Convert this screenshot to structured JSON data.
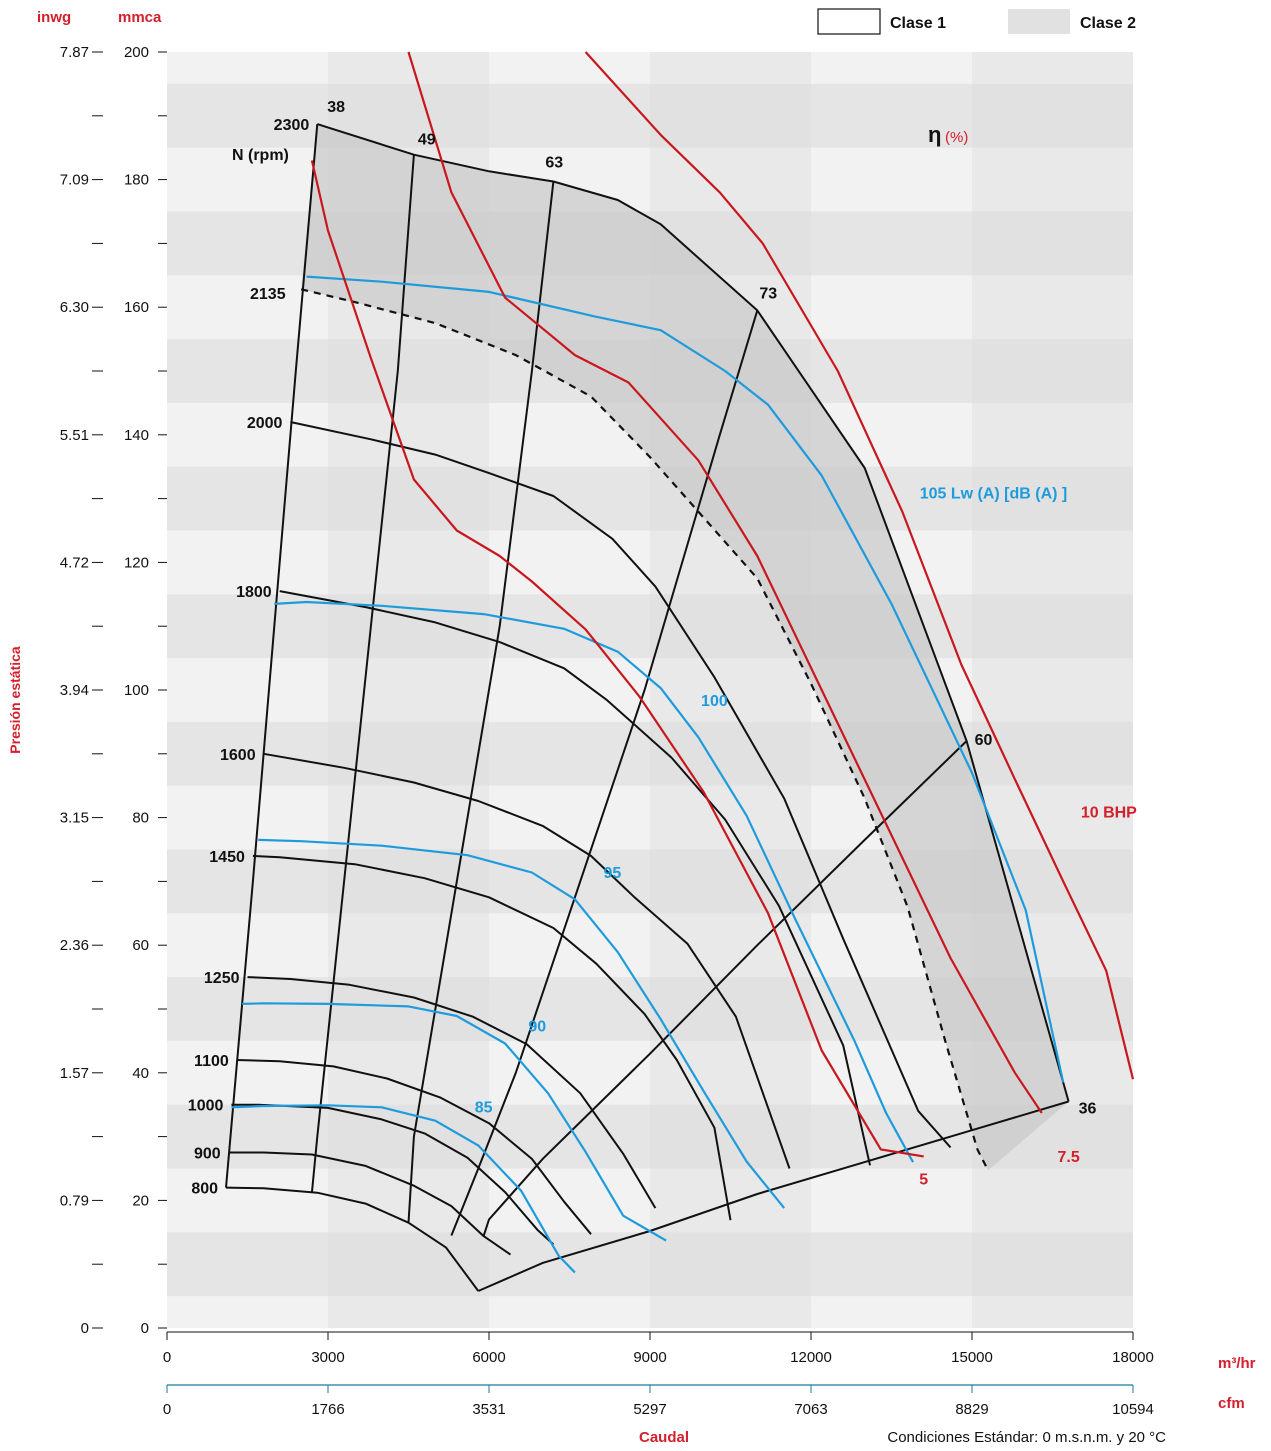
{
  "chart_data": {
    "type": "line",
    "axes": {
      "x": {
        "unit": "m³/hr",
        "min": 0,
        "max": 18000,
        "ticks": [
          0,
          3000,
          6000,
          9000,
          12000,
          15000,
          18000
        ],
        "secondary_unit": "cfm",
        "secondary_ticks": [
          "0",
          "1766",
          "3531",
          "5297",
          "7063",
          "8829",
          "10594"
        ],
        "xlabel": "Caudal"
      },
      "y": {
        "unit": "mmca",
        "min": 0,
        "max": 200,
        "ticks": [
          0,
          20,
          40,
          60,
          80,
          100,
          120,
          140,
          160,
          180,
          200
        ],
        "secondary_unit": "inwg",
        "secondary_ticks": [
          "0",
          "0.79",
          "1.57",
          "2.36",
          "3.15",
          "3.94",
          "4.72",
          "5.51",
          "6.30",
          "7.09",
          "7.87"
        ],
        "ylabel": "Presión estática"
      }
    },
    "legend": [
      {
        "name": "Clase 1",
        "fill": "#ffffff"
      },
      {
        "name": "Clase 2",
        "fill": "#e1e1e1"
      }
    ],
    "note": "Condiciones Estándar: 0 m.s.n.m. y 20 °C",
    "rpm_curves": [
      {
        "label": "2300",
        "points": [
          [
            2800,
            188.7
          ],
          [
            4600,
            183.9
          ],
          [
            6000,
            181.3
          ],
          [
            7200,
            179.7
          ],
          [
            8400,
            176.8
          ],
          [
            9200,
            173.0
          ],
          [
            11000,
            159.5
          ],
          [
            13000,
            134.8
          ],
          [
            14900,
            92.0
          ],
          [
            16800,
            35.5
          ]
        ]
      },
      {
        "label": "2000",
        "points": [
          [
            2300,
            142.0
          ],
          [
            3800,
            139.3
          ],
          [
            5000,
            136.9
          ],
          [
            6000,
            134.0
          ],
          [
            7200,
            130.4
          ],
          [
            8300,
            123.7
          ],
          [
            9100,
            116.2
          ],
          [
            10200,
            102.0
          ],
          [
            11500,
            83.0
          ],
          [
            12600,
            61.0
          ],
          [
            14000,
            34.0
          ],
          [
            14600,
            28.3
          ]
        ]
      },
      {
        "label": "1800",
        "points": [
          [
            2100,
            115.5
          ],
          [
            3700,
            113.0
          ],
          [
            5000,
            110.6
          ],
          [
            6200,
            107.5
          ],
          [
            7400,
            103.4
          ],
          [
            8200,
            98.4
          ],
          [
            9400,
            89.4
          ],
          [
            10400,
            79.7
          ],
          [
            11400,
            66.2
          ],
          [
            12600,
            44.3
          ],
          [
            13100,
            25.5
          ]
        ]
      },
      {
        "label": "1600",
        "points": [
          [
            1800,
            90.0
          ],
          [
            3300,
            87.8
          ],
          [
            4600,
            85.5
          ],
          [
            5800,
            82.6
          ],
          [
            7000,
            78.7
          ],
          [
            7900,
            74.0
          ],
          [
            8700,
            67.6
          ],
          [
            9700,
            60.2
          ],
          [
            10600,
            48.8
          ],
          [
            11600,
            25.0
          ]
        ]
      },
      {
        "label": "1450",
        "points": [
          [
            1600,
            74.0
          ],
          [
            2100,
            73.8
          ],
          [
            3500,
            72.7
          ],
          [
            4800,
            70.5
          ],
          [
            6000,
            67.5
          ],
          [
            7200,
            62.7
          ],
          [
            8000,
            57.1
          ],
          [
            8900,
            49.2
          ],
          [
            9500,
            42.0
          ],
          [
            10200,
            31.4
          ],
          [
            10500,
            16.9
          ]
        ]
      },
      {
        "label": "1250",
        "points": [
          [
            1500,
            55.0
          ],
          [
            2300,
            54.7
          ],
          [
            3400,
            53.8
          ],
          [
            4600,
            51.8
          ],
          [
            5700,
            48.8
          ],
          [
            6700,
            44.5
          ],
          [
            7700,
            36.8
          ],
          [
            8500,
            27.3
          ],
          [
            9100,
            18.8
          ]
        ]
      },
      {
        "label": "1100",
        "points": [
          [
            1300,
            42.0
          ],
          [
            2100,
            41.8
          ],
          [
            3100,
            41.0
          ],
          [
            4100,
            39.1
          ],
          [
            5100,
            36.1
          ],
          [
            6000,
            32.1
          ],
          [
            6800,
            26.5
          ],
          [
            7400,
            19.8
          ],
          [
            7900,
            14.7
          ]
        ]
      },
      {
        "label": "1000",
        "points": [
          [
            1200,
            35.0
          ],
          [
            1700,
            35.0
          ],
          [
            3000,
            34.5
          ],
          [
            4000,
            32.7
          ],
          [
            4800,
            30.5
          ],
          [
            5600,
            26.7
          ],
          [
            6300,
            21.3
          ],
          [
            6900,
            15.4
          ],
          [
            7200,
            13.1
          ]
        ]
      },
      {
        "label": "900",
        "points": [
          [
            1150,
            27.5
          ],
          [
            1800,
            27.5
          ],
          [
            2700,
            27.2
          ],
          [
            3700,
            25.4
          ],
          [
            4600,
            22.3
          ],
          [
            5300,
            19.1
          ],
          [
            5900,
            14.4
          ],
          [
            6400,
            11.5
          ]
        ]
      },
      {
        "label": "800",
        "points": [
          [
            1100,
            22.0
          ],
          [
            1800,
            21.9
          ],
          [
            2800,
            21.2
          ],
          [
            3700,
            19.5
          ],
          [
            4500,
            16.5
          ],
          [
            5200,
            12.6
          ],
          [
            5800,
            5.8
          ]
        ]
      }
    ],
    "efficiency_lines": [
      {
        "label": "38",
        "points": [
          [
            2800,
            188.7
          ],
          [
            2400,
            150.0
          ],
          [
            2000,
            110.0
          ],
          [
            1600,
            70.0
          ],
          [
            1100,
            22.0
          ]
        ]
      },
      {
        "label": "49",
        "points": [
          [
            4600,
            183.9
          ],
          [
            4300,
            150.0
          ],
          [
            3800,
            110.0
          ],
          [
            3300,
            70.0
          ],
          [
            2800,
            30.0
          ],
          [
            2700,
            21.2
          ]
        ]
      },
      {
        "label": "63",
        "points": [
          [
            7200,
            179.7
          ],
          [
            6800,
            150.0
          ],
          [
            6200,
            110.0
          ],
          [
            5400,
            70.0
          ],
          [
            4600,
            30.0
          ],
          [
            4500,
            16.5
          ]
        ]
      },
      {
        "label": "73",
        "points": [
          [
            11000,
            159.5
          ],
          [
            10300,
            140.0
          ],
          [
            9600,
            120.0
          ],
          [
            8900,
            100.0
          ],
          [
            8100,
            80.0
          ],
          [
            7300,
            60.0
          ],
          [
            6500,
            40.0
          ],
          [
            5800,
            25.0
          ],
          [
            5300,
            14.5
          ]
        ]
      },
      {
        "label": "60",
        "points": [
          [
            14900,
            92.0
          ],
          [
            13000,
            76.5
          ],
          [
            11000,
            60.0
          ],
          [
            9000,
            43.0
          ],
          [
            7000,
            26.5
          ],
          [
            6000,
            17.0
          ],
          [
            5900,
            14.4
          ]
        ]
      },
      {
        "label": "36",
        "points": [
          [
            16800,
            35.5
          ],
          [
            15000,
            31.0
          ],
          [
            13000,
            26.0
          ],
          [
            11000,
            21.0
          ],
          [
            9000,
            15.2
          ],
          [
            7000,
            10.2
          ],
          [
            5800,
            5.8
          ]
        ]
      }
    ],
    "noise_curves": [
      {
        "label": "105 Lw  (A) [dB (A) ]",
        "points": [
          [
            2600,
            164.8
          ],
          [
            4000,
            164.0
          ],
          [
            6000,
            162.4
          ],
          [
            8000,
            158.5
          ],
          [
            9200,
            156.4
          ],
          [
            10400,
            150.0
          ],
          [
            11200,
            144.7
          ],
          [
            12200,
            133.6
          ],
          [
            13500,
            113.5
          ],
          [
            15000,
            87.0
          ],
          [
            16000,
            65.5
          ],
          [
            16700,
            38.5
          ]
        ]
      },
      {
        "label": "100",
        "points": [
          [
            2000,
            113.5
          ],
          [
            2600,
            113.8
          ],
          [
            4000,
            113.2
          ],
          [
            5900,
            111.9
          ],
          [
            7400,
            109.6
          ],
          [
            8400,
            106.0
          ],
          [
            9200,
            100.3
          ],
          [
            9900,
            92.6
          ],
          [
            10800,
            80.3
          ],
          [
            11700,
            64.2
          ],
          [
            12800,
            45.2
          ],
          [
            13400,
            33.7
          ],
          [
            13900,
            26.0
          ]
        ]
      },
      {
        "label": "95",
        "points": [
          [
            1700,
            76.5
          ],
          [
            2500,
            76.3
          ],
          [
            4000,
            75.6
          ],
          [
            5600,
            74.1
          ],
          [
            6800,
            71.4
          ],
          [
            7600,
            67.2
          ],
          [
            8400,
            58.9
          ],
          [
            9200,
            48.4
          ],
          [
            10000,
            37.1
          ],
          [
            10800,
            26.1
          ],
          [
            11500,
            18.8
          ]
        ]
      },
      {
        "label": "90",
        "points": [
          [
            1400,
            50.8
          ],
          [
            1800,
            50.9
          ],
          [
            3000,
            50.8
          ],
          [
            4500,
            50.4
          ],
          [
            5400,
            48.9
          ],
          [
            6300,
            44.6
          ],
          [
            7100,
            36.8
          ],
          [
            7800,
            27.6
          ],
          [
            8500,
            17.6
          ],
          [
            9300,
            13.7
          ]
        ]
      },
      {
        "label": "85",
        "points": [
          [
            1200,
            34.6
          ],
          [
            1800,
            34.8
          ],
          [
            3000,
            34.9
          ],
          [
            4000,
            34.6
          ],
          [
            5000,
            32.5
          ],
          [
            5800,
            28.6
          ],
          [
            6600,
            21.5
          ],
          [
            7300,
            11.3
          ],
          [
            7600,
            8.7
          ]
        ]
      }
    ],
    "power_curves": [
      {
        "label": "5",
        "points": [
          [
            2700,
            183.0
          ],
          [
            3000,
            172.0
          ],
          [
            3800,
            152.0
          ],
          [
            4600,
            133.0
          ],
          [
            5400,
            125.0
          ],
          [
            6200,
            121.0
          ],
          [
            6800,
            117.0
          ],
          [
            7800,
            109.5
          ],
          [
            8800,
            99.0
          ],
          [
            10000,
            84.0
          ],
          [
            11200,
            65.0
          ],
          [
            12200,
            43.5
          ],
          [
            13300,
            28.0
          ],
          [
            14100,
            26.9
          ]
        ]
      },
      {
        "label": "7.5",
        "points": [
          [
            4500,
            200.0
          ],
          [
            5300,
            178.0
          ],
          [
            6300,
            161.5
          ],
          [
            7600,
            152.5
          ],
          [
            8600,
            148.2
          ],
          [
            9900,
            136.0
          ],
          [
            11000,
            121.0
          ],
          [
            12200,
            100.0
          ],
          [
            13400,
            79.0
          ],
          [
            14600,
            58.0
          ],
          [
            15800,
            40.0
          ],
          [
            16300,
            33.7
          ]
        ]
      },
      {
        "label": "10 BHP",
        "points": [
          [
            7800,
            200.0
          ],
          [
            9200,
            187.0
          ],
          [
            10300,
            178.0
          ],
          [
            11100,
            170.0
          ],
          [
            12500,
            150.0
          ],
          [
            13700,
            128.0
          ],
          [
            14800,
            104.0
          ],
          [
            15800,
            86.0
          ],
          [
            16700,
            70.0
          ],
          [
            17500,
            56.0
          ],
          [
            18000,
            39.0
          ]
        ]
      }
    ],
    "dashed_curve": {
      "points": [
        [
          2500,
          162.8
        ],
        [
          3500,
          160.8
        ],
        [
          5000,
          157.5
        ],
        [
          6500,
          152.5
        ],
        [
          7900,
          146.0
        ],
        [
          9000,
          136.5
        ],
        [
          10000,
          127.0
        ],
        [
          11000,
          117.5
        ],
        [
          12000,
          101.0
        ],
        [
          13000,
          83.0
        ],
        [
          13800,
          66.0
        ],
        [
          14500,
          45.0
        ],
        [
          15100,
          28.0
        ],
        [
          15300,
          24.7
        ]
      ]
    },
    "labels": {
      "unit_left": "inwg",
      "unit_right": "mmca",
      "rpm_header": "N (rpm)",
      "rpm_2135": "2135",
      "eta_symbol": "η",
      "eta_unit": "(%)"
    },
    "colors": {
      "rpm": "#111111",
      "noise": "#1e9bdc",
      "power": "#c8181e",
      "accent_text": "#d4202c",
      "class2_fill": "#c9c9c9",
      "band_dark": "#e5e5e5",
      "band_light": "#f2f2f2",
      "vertical_band": "#dadada"
    }
  }
}
